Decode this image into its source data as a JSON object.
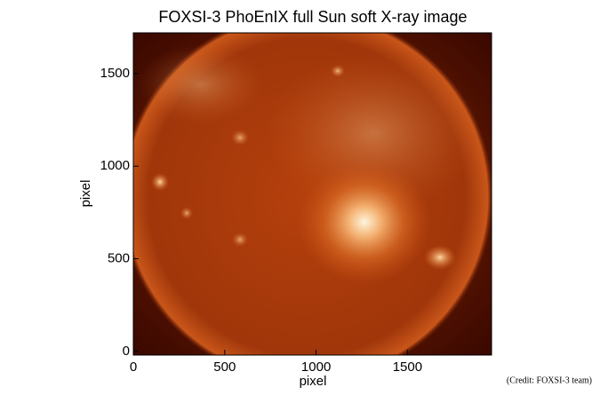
{
  "chart_data": {
    "type": "image",
    "title": "FOXSI-3 PhoEnIX full Sun soft X-ray image",
    "x_label": "pixel",
    "y_label": "pixel",
    "xlim": [
      0,
      1960
    ],
    "ylim": [
      -20,
      1720
    ],
    "xticks": [
      0,
      500,
      1000,
      1500
    ],
    "yticks": [
      0,
      500,
      1000,
      1500
    ],
    "annotation": "(Credit: FOXSI-3 team)"
  }
}
